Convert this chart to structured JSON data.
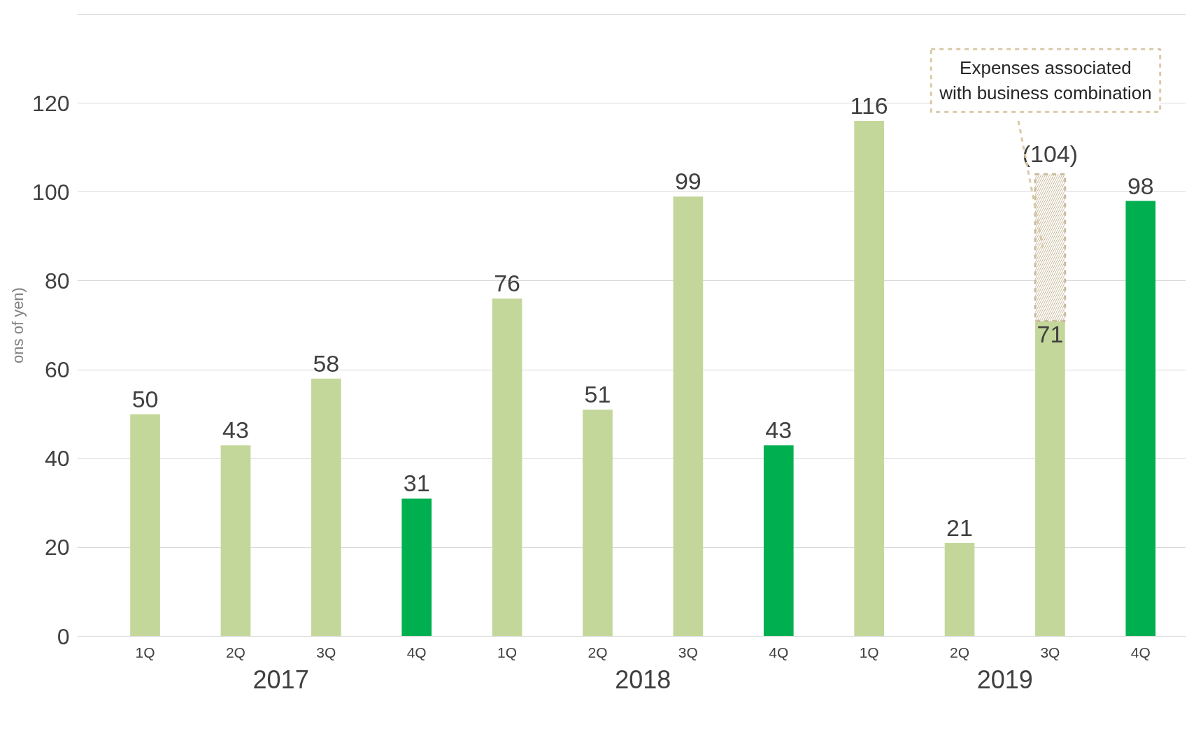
{
  "chart_data": {
    "type": "bar",
    "stacked": true,
    "ylabel": "ons of yen)",
    "categories": [
      "1Q",
      "2Q",
      "3Q",
      "4Q",
      "1Q",
      "2Q",
      "3Q",
      "4Q",
      "1Q",
      "2Q",
      "3Q",
      "4Q"
    ],
    "series": [
      {
        "colors": [
          "#c4d79b",
          "#c4d79b",
          "#c4d79b",
          "#00b050",
          "#c4d79b",
          "#c4d79b",
          "#c4d79b",
          "#00b050",
          "#c4d79b",
          "#c4d79b",
          "#c4d79b",
          "#00b050"
        ],
        "values": [
          50,
          43,
          58,
          31,
          76,
          51,
          99,
          43,
          116,
          21,
          71,
          98
        ],
        "value_labels": [
          "50",
          "43",
          "58",
          "31",
          "76",
          "51",
          "99",
          "43",
          "116",
          "21",
          "71",
          "98"
        ]
      },
      {
        "color": "#c9bc9c",
        "values": [
          null,
          null,
          null,
          null,
          null,
          null,
          null,
          null,
          null,
          null,
          33,
          null
        ]
      }
    ],
    "totals": [
      null,
      null,
      null,
      null,
      null,
      null,
      null,
      null,
      null,
      null,
      "(104)",
      null
    ],
    "annotations": [
      "2017",
      "2018",
      "2019",
      "Expenses associated\nwith business combination"
    ],
    "ylim": [
      0,
      140
    ],
    "yticks": [
      0,
      20,
      40,
      60,
      80,
      100,
      120,
      {
        "value": 140,
        "label": null
      }
    ],
    "grid": "y"
  }
}
